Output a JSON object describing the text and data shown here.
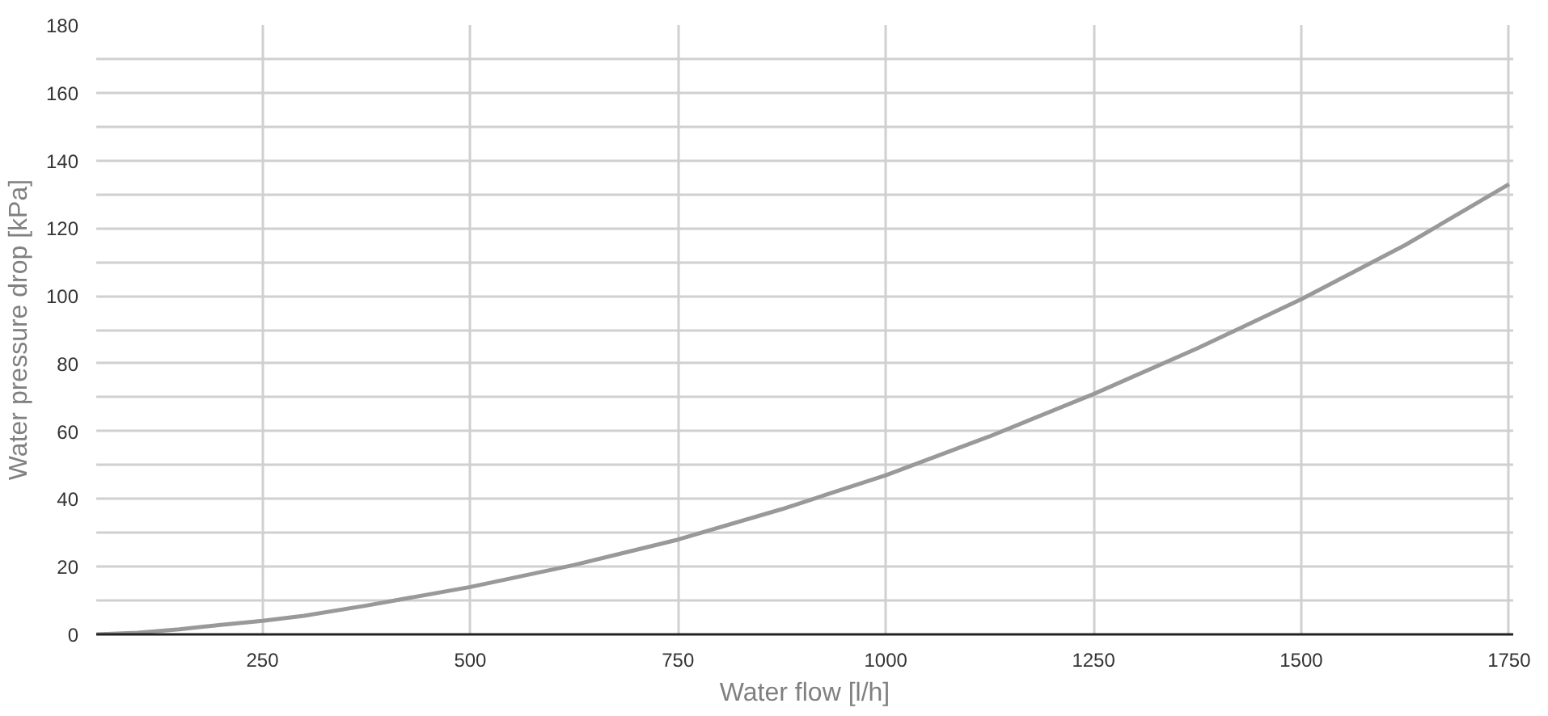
{
  "chart_data": {
    "type": "line",
    "xlabel": "Water flow [l/h]",
    "ylabel": "Water pressure drop [kPa]",
    "x": [
      50,
      100,
      150,
      200,
      250,
      300,
      375,
      500,
      625,
      750,
      875,
      1000,
      1125,
      1250,
      1375,
      1500,
      1625,
      1750
    ],
    "series": [
      {
        "color": "#999999",
        "values": [
          0,
          0.5,
          1.5,
          2.8,
          4,
          5.5,
          8.5,
          14,
          20.5,
          28,
          37,
          47,
          58.5,
          71,
          84.5,
          99,
          115,
          133
        ]
      }
    ],
    "xlim": [
      50,
      1755
    ],
    "ylim": [
      0,
      180
    ],
    "xticks": [
      250,
      500,
      750,
      1000,
      1250,
      1500,
      1750
    ],
    "yticks": [
      0,
      {
        "value": 10,
        "label": null
      },
      20,
      {
        "value": 30,
        "label": null
      },
      40,
      {
        "value": 50,
        "label": null
      },
      60,
      {
        "value": 70,
        "label": null
      },
      80,
      {
        "value": 90,
        "label": null
      },
      100,
      {
        "value": 110,
        "label": null
      },
      120,
      {
        "value": 130,
        "label": null
      },
      140,
      {
        "value": 150,
        "label": null
      },
      160,
      {
        "value": 170,
        "label": null
      },
      180
    ],
    "grid": true,
    "marker": "none",
    "line_style": "solid"
  }
}
